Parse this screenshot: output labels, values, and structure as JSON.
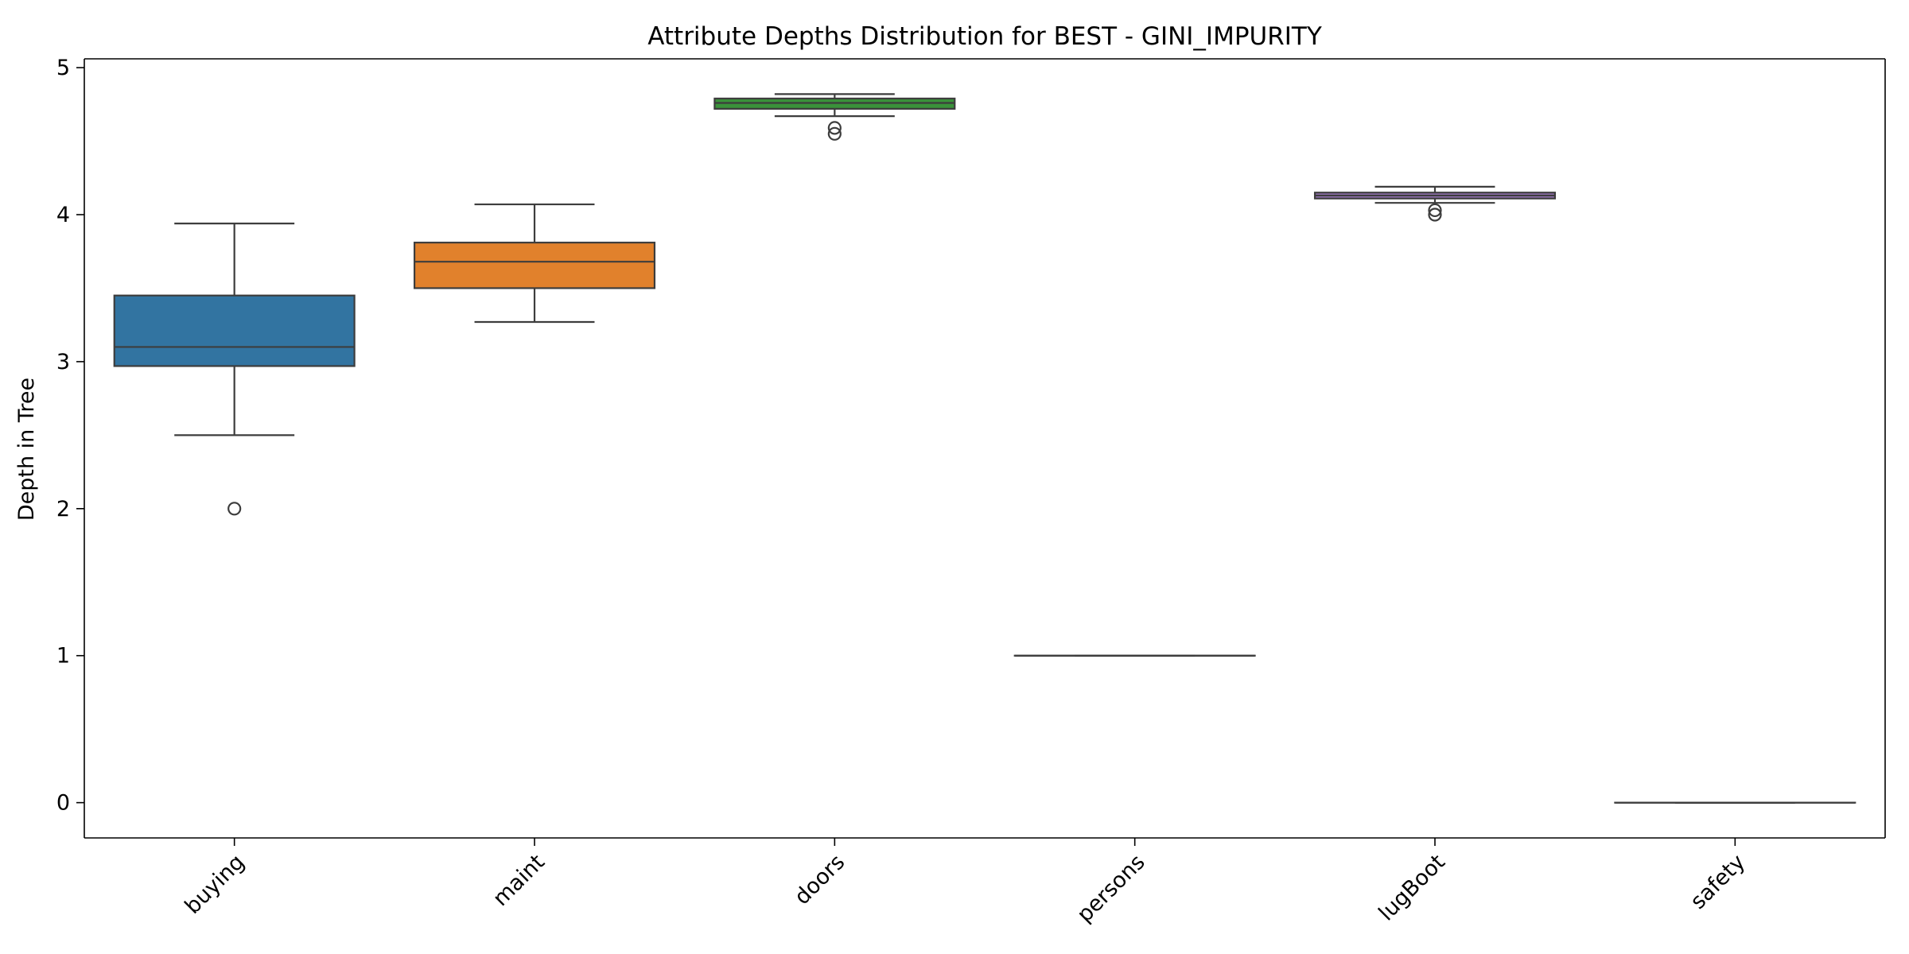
{
  "chart_data": {
    "type": "box",
    "title": "Attribute Depths Distribution for BEST - GINI_IMPURITY",
    "xlabel": "",
    "ylabel": "Depth in Tree",
    "ylim": [
      -0.24,
      5.06
    ],
    "yticks": [
      "0",
      "1",
      "2",
      "3",
      "4",
      "5"
    ],
    "grid": false,
    "legend": "none",
    "categories": [
      "buying",
      "maint",
      "doors",
      "persons",
      "lugBoot",
      "safety"
    ],
    "boxes": [
      {
        "category": "buying",
        "whisker_low": 2.5,
        "q1": 2.97,
        "median": 3.1,
        "q3": 3.45,
        "whisker_high": 3.94,
        "outliers": [
          2.0
        ],
        "color": "#3274a1"
      },
      {
        "category": "maint",
        "whisker_low": 3.27,
        "q1": 3.5,
        "median": 3.68,
        "q3": 3.81,
        "whisker_high": 4.07,
        "outliers": [],
        "color": "#e1812c"
      },
      {
        "category": "doors",
        "whisker_low": 4.67,
        "q1": 4.72,
        "median": 4.76,
        "q3": 4.79,
        "whisker_high": 4.82,
        "outliers": [
          4.55,
          4.59
        ],
        "color": "#3a923a"
      },
      {
        "category": "persons",
        "whisker_low": 1.0,
        "q1": 1.0,
        "median": 1.0,
        "q3": 1.0,
        "whisker_high": 1.0,
        "outliers": [],
        "color": "#c03d3e"
      },
      {
        "category": "lugBoot",
        "whisker_low": 4.08,
        "q1": 4.11,
        "median": 4.13,
        "q3": 4.15,
        "whisker_high": 4.19,
        "outliers": [
          4.0,
          4.03
        ],
        "color": "#9372b2"
      },
      {
        "category": "safety",
        "whisker_low": 0.0,
        "q1": 0.0,
        "median": 0.0,
        "q3": 0.0,
        "whisker_high": 0.0,
        "outliers": [],
        "color": "#845b53"
      }
    ],
    "colors": {
      "lines": "#3d3d3d",
      "axes": "#000000"
    }
  }
}
